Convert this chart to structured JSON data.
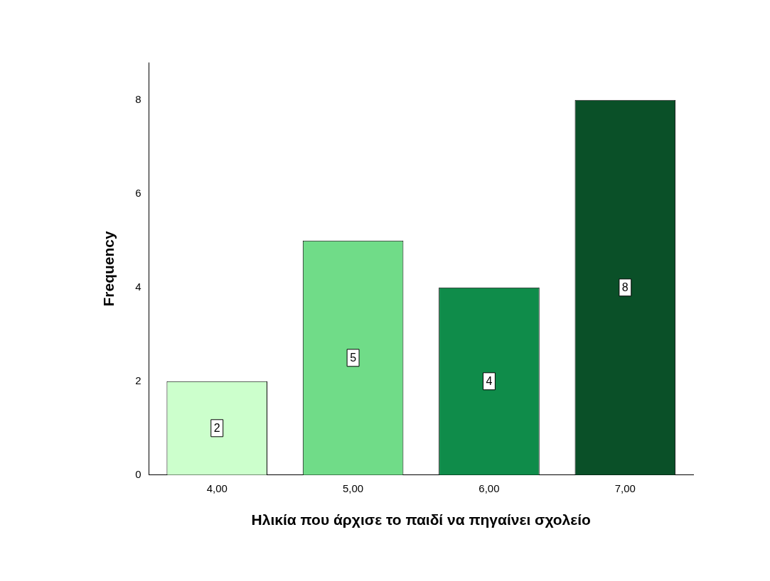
{
  "chart_data": {
    "type": "bar",
    "xlabel": "Ηλικία που άρχισε το παιδί να πηγαίνει σχολείο",
    "ylabel": "Frequency",
    "categories": [
      "4,00",
      "5,00",
      "6,00",
      "7,00"
    ],
    "values": [
      2,
      5,
      4,
      8
    ],
    "colors": [
      "#ccffcc",
      "#70dc88",
      "#0f8c4a",
      "#0a5028"
    ],
    "ylim": [
      0,
      8.8
    ],
    "yticks": [
      0,
      2,
      4,
      6,
      8
    ],
    "grid": false,
    "legend": false,
    "data_labels": true
  }
}
